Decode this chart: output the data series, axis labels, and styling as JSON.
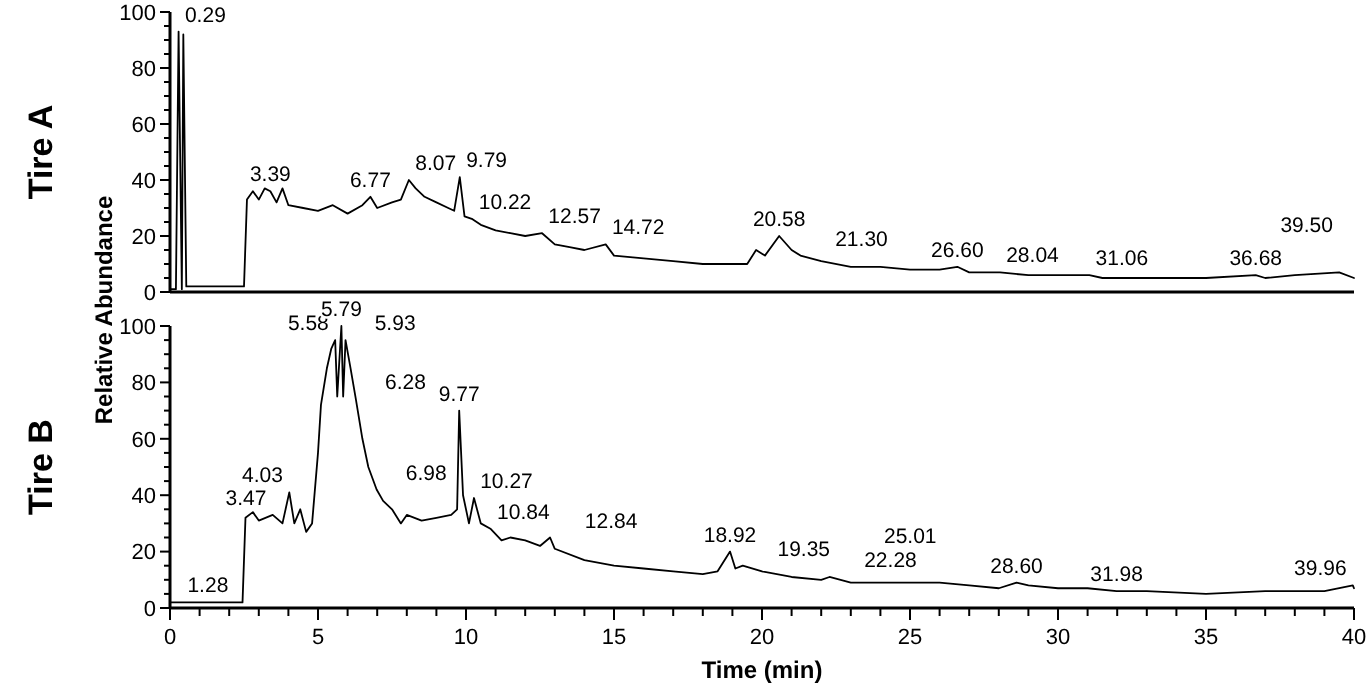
{
  "chart_data": [
    {
      "type": "line",
      "title": "Tire A",
      "xlim": [
        0,
        40
      ],
      "ylim": [
        0,
        100
      ],
      "tick_labels": "y",
      "grid": false,
      "yticks": [
        0,
        {
          "value": 5,
          "label": null
        },
        {
          "value": 10,
          "label": null
        },
        {
          "value": 15,
          "label": null
        },
        20,
        {
          "value": 25,
          "label": null
        },
        {
          "value": 30,
          "label": null
        },
        {
          "value": 35,
          "label": null
        },
        40,
        {
          "value": 45,
          "label": null
        },
        {
          "value": 50,
          "label": null
        },
        {
          "value": 55,
          "label": null
        },
        60,
        {
          "value": 65,
          "label": null
        },
        {
          "value": 70,
          "label": null
        },
        {
          "value": 75,
          "label": null
        },
        80,
        {
          "value": 85,
          "label": null
        },
        {
          "value": 90,
          "label": null
        },
        {
          "value": 95,
          "label": null
        },
        100
      ],
      "series": [
        {
          "color": "#000000",
          "x": [
            0,
            0.2,
            0.29,
            0.4,
            0.45,
            0.55,
            1,
            2.5,
            2.6,
            2.8,
            3,
            3.2,
            3.39,
            3.6,
            3.8,
            4,
            4.5,
            5,
            5.5,
            6,
            6.5,
            6.77,
            7,
            7.5,
            7.8,
            8.07,
            8.3,
            8.6,
            9,
            9.4,
            9.6,
            9.79,
            9.95,
            10.22,
            10.5,
            11,
            11.5,
            12,
            12.57,
            13,
            13.5,
            14,
            14.72,
            15,
            16,
            17,
            18,
            19,
            19.5,
            19.8,
            20.1,
            20.58,
            21,
            21.3,
            22,
            23,
            24,
            25,
            26,
            26.6,
            27,
            28,
            28.04,
            29,
            30,
            31.06,
            31.5,
            33,
            35,
            36.68,
            37,
            38,
            39.5,
            40
          ],
          "values": [
            1,
            1,
            93,
            1,
            92,
            2,
            2,
            2,
            33,
            36,
            33,
            37,
            36,
            32,
            37,
            31,
            30,
            29,
            31,
            28,
            31,
            34,
            30,
            32,
            33,
            40,
            37,
            34,
            32,
            30,
            29,
            41,
            27,
            26,
            24,
            22,
            21,
            20,
            21,
            17,
            16,
            15,
            17,
            13,
            12,
            11,
            10,
            10,
            10,
            15,
            13,
            20,
            15,
            13,
            11,
            9,
            9,
            8,
            8,
            9,
            7,
            7,
            7,
            6,
            6,
            6,
            5,
            5,
            5,
            6,
            5,
            6,
            7,
            5
          ]
        }
      ],
      "annotations": [
        {
          "text": "0.29",
          "x": 0.29,
          "y": 93
        },
        {
          "text": "3.39",
          "x": 3.39,
          "y": 36
        },
        {
          "text": "6.77",
          "x": 6.77,
          "y": 34
        },
        {
          "text": "8.07",
          "x": 8.07,
          "y": 40
        },
        {
          "text": "9.79",
          "x": 9.79,
          "y": 41
        },
        {
          "text": "10.22",
          "x": 10.22,
          "y": 26
        },
        {
          "text": "12.57",
          "x": 12.57,
          "y": 21
        },
        {
          "text": "14.72",
          "x": 14.72,
          "y": 17
        },
        {
          "text": "20.58",
          "x": 20.58,
          "y": 20
        },
        {
          "text": "21.30",
          "x": 21.3,
          "y": 13
        },
        {
          "text": "26.60",
          "x": 26.6,
          "y": 9
        },
        {
          "text": "28.04",
          "x": 28.04,
          "y": 7
        },
        {
          "text": "31.06",
          "x": 31.06,
          "y": 6
        },
        {
          "text": "36.68",
          "x": 36.68,
          "y": 6
        },
        {
          "text": "39.50",
          "x": 39.5,
          "y": 7
        }
      ]
    },
    {
      "type": "line",
      "title": "Tire B",
      "xlabel": "Time (min)",
      "ylabel": "Relative Abundance",
      "xlim": [
        0,
        40
      ],
      "ylim": [
        0,
        100
      ],
      "grid": false,
      "xticks": [
        0,
        {
          "value": 1,
          "label": null
        },
        {
          "value": 2,
          "label": null
        },
        {
          "value": 3,
          "label": null
        },
        {
          "value": 4,
          "label": null
        },
        5,
        {
          "value": 6,
          "label": null
        },
        {
          "value": 7,
          "label": null
        },
        {
          "value": 8,
          "label": null
        },
        {
          "value": 9,
          "label": null
        },
        10,
        {
          "value": 11,
          "label": null
        },
        {
          "value": 12,
          "label": null
        },
        {
          "value": 13,
          "label": null
        },
        {
          "value": 14,
          "label": null
        },
        15,
        {
          "value": 16,
          "label": null
        },
        {
          "value": 17,
          "label": null
        },
        {
          "value": 18,
          "label": null
        },
        {
          "value": 19,
          "label": null
        },
        20,
        {
          "value": 21,
          "label": null
        },
        {
          "value": 22,
          "label": null
        },
        {
          "value": 23,
          "label": null
        },
        {
          "value": 24,
          "label": null
        },
        25,
        {
          "value": 26,
          "label": null
        },
        {
          "value": 27,
          "label": null
        },
        {
          "value": 28,
          "label": null
        },
        {
          "value": 29,
          "label": null
        },
        30,
        {
          "value": 31,
          "label": null
        },
        {
          "value": 32,
          "label": null
        },
        {
          "value": 33,
          "label": null
        },
        {
          "value": 34,
          "label": null
        },
        35,
        {
          "value": 36,
          "label": null
        },
        {
          "value": 37,
          "label": null
        },
        {
          "value": 38,
          "label": null
        },
        {
          "value": 39,
          "label": null
        },
        40
      ],
      "yticks": [
        0,
        {
          "value": 5,
          "label": null
        },
        {
          "value": 10,
          "label": null
        },
        {
          "value": 15,
          "label": null
        },
        20,
        {
          "value": 25,
          "label": null
        },
        {
          "value": 30,
          "label": null
        },
        {
          "value": 35,
          "label": null
        },
        40,
        {
          "value": 45,
          "label": null
        },
        {
          "value": 50,
          "label": null
        },
        {
          "value": 55,
          "label": null
        },
        60,
        {
          "value": 65,
          "label": null
        },
        {
          "value": 70,
          "label": null
        },
        {
          "value": 75,
          "label": null
        },
        80,
        {
          "value": 85,
          "label": null
        },
        {
          "value": 90,
          "label": null
        },
        {
          "value": 95,
          "label": null
        },
        100
      ],
      "series": [
        {
          "color": "#000000",
          "x": [
            0,
            1.28,
            2.45,
            2.55,
            2.8,
            3,
            3.47,
            3.8,
            4.03,
            4.2,
            4.4,
            4.6,
            4.8,
            5,
            5.1,
            5.3,
            5.45,
            5.58,
            5.65,
            5.79,
            5.85,
            5.93,
            6.1,
            6.28,
            6.5,
            6.7,
            6.98,
            7.2,
            7.5,
            7.8,
            8,
            8.5,
            9,
            9.5,
            9.7,
            9.77,
            9.9,
            10.1,
            10.27,
            10.5,
            10.84,
            11.2,
            11.5,
            12,
            12.5,
            12.84,
            13,
            14,
            15,
            16,
            17,
            18,
            18.5,
            18.92,
            19.1,
            19.35,
            20,
            21,
            22,
            22.28,
            23,
            24,
            25.01,
            26,
            27,
            28,
            28.6,
            29,
            30,
            31,
            31.98,
            33,
            35,
            37,
            39,
            39.96,
            40
          ],
          "values": [
            2,
            2,
            2,
            32,
            34,
            31,
            33,
            30,
            41,
            30,
            35,
            27,
            30,
            55,
            72,
            85,
            92,
            95,
            75,
            100,
            75,
            95,
            85,
            74,
            60,
            50,
            42,
            38,
            35,
            30,
            33,
            31,
            32,
            33,
            35,
            70,
            40,
            30,
            39,
            30,
            28,
            24,
            25,
            24,
            22,
            25,
            21,
            17,
            15,
            14,
            13,
            12,
            13,
            20,
            14,
            15,
            13,
            11,
            10,
            11,
            9,
            9,
            9,
            9,
            8,
            7,
            9,
            8,
            7,
            7,
            6,
            6,
            5,
            6,
            6,
            8,
            7
          ]
        }
      ],
      "annotations": [
        {
          "text": "1.28",
          "x": 1.28,
          "y": 2
        },
        {
          "text": "3.47",
          "x": 3.47,
          "y": 33
        },
        {
          "text": "4.03",
          "x": 4.03,
          "y": 41
        },
        {
          "text": "5.58",
          "x": 5.58,
          "y": 95
        },
        {
          "text": "5.79",
          "x": 5.79,
          "y": 100
        },
        {
          "text": "5.93",
          "x": 5.93,
          "y": 95
        },
        {
          "text": "6.28",
          "x": 6.28,
          "y": 74
        },
        {
          "text": "6.98",
          "x": 6.98,
          "y": 42
        },
        {
          "text": "9.77",
          "x": 9.77,
          "y": 70
        },
        {
          "text": "10.27",
          "x": 10.27,
          "y": 39
        },
        {
          "text": "10.84",
          "x": 10.84,
          "y": 28
        },
        {
          "text": "12.84",
          "x": 12.84,
          "y": 25
        },
        {
          "text": "18.92",
          "x": 18.92,
          "y": 20
        },
        {
          "text": "19.35",
          "x": 19.35,
          "y": 15
        },
        {
          "text": "22.28",
          "x": 22.28,
          "y": 11
        },
        {
          "text": "25.01",
          "x": 25.01,
          "y": 9
        },
        {
          "text": "28.60",
          "x": 28.6,
          "y": 9
        },
        {
          "text": "31.98",
          "x": 31.98,
          "y": 6
        },
        {
          "text": "39.96",
          "x": 39.96,
          "y": 8
        }
      ]
    }
  ]
}
